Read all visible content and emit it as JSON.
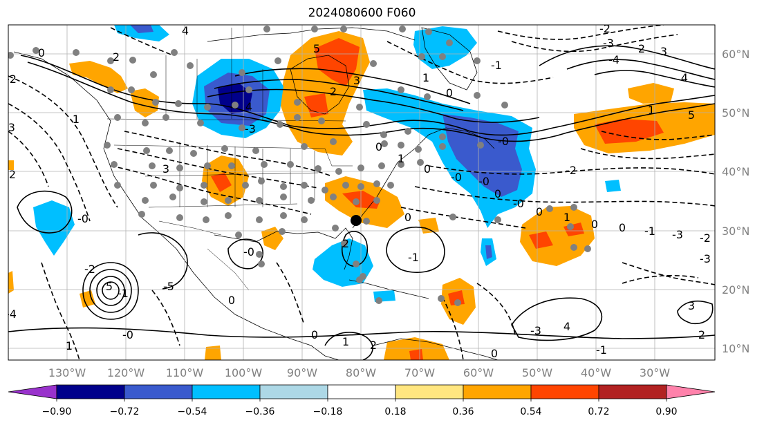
{
  "title": "2024080600 F060",
  "lon_ticks": [
    "130°W",
    "120°W",
    "110°W",
    "100°W",
    "90°W",
    "80°W",
    "70°W",
    "60°W",
    "50°W",
    "40°W",
    "30°W"
  ],
  "lat_ticks": [
    "60°N",
    "50°N",
    "40°N",
    "30°N",
    "20°N",
    "10°N"
  ],
  "colorbar": {
    "tick_labels": [
      "−0.90",
      "−0.72",
      "−0.54",
      "−0.36",
      "−0.18",
      "0.18",
      "0.36",
      "0.54",
      "0.72",
      "0.90"
    ],
    "colors": [
      "#9932cc",
      "#00008b",
      "#3a5acd",
      "#00bfff",
      "#add8e6",
      "#ffffff",
      "#ffe680",
      "#ffa500",
      "#ff4500",
      "#b22222",
      "#ff82ab"
    ]
  },
  "contour_labels": [
    "4",
    "5",
    "3",
    "2",
    "1",
    "0",
    "-1",
    "-2",
    "-3",
    "-4",
    "2",
    "3",
    "4",
    "5",
    "1",
    "2",
    "0",
    "-2",
    "-3",
    "2",
    "1",
    "-0",
    "3",
    "4",
    "-3",
    "-0",
    "-2",
    "0",
    "-1",
    "-0",
    "2",
    "0",
    "-0",
    "1",
    "0",
    "-1",
    "2",
    "3",
    "-3",
    "4",
    "-4",
    "5",
    "-5",
    "-2",
    "-1",
    "0",
    "1",
    "2",
    "0",
    "1",
    "0",
    "-0",
    "-0",
    "0",
    "-0",
    "0",
    "1",
    "0",
    "0",
    "-1",
    "-3",
    "-2",
    "-3"
  ],
  "colors": {
    "land": "#ffffff",
    "grid": "#b0b0b0",
    "contour": "#000000",
    "station": "#808080",
    "marker": "#000000"
  }
}
